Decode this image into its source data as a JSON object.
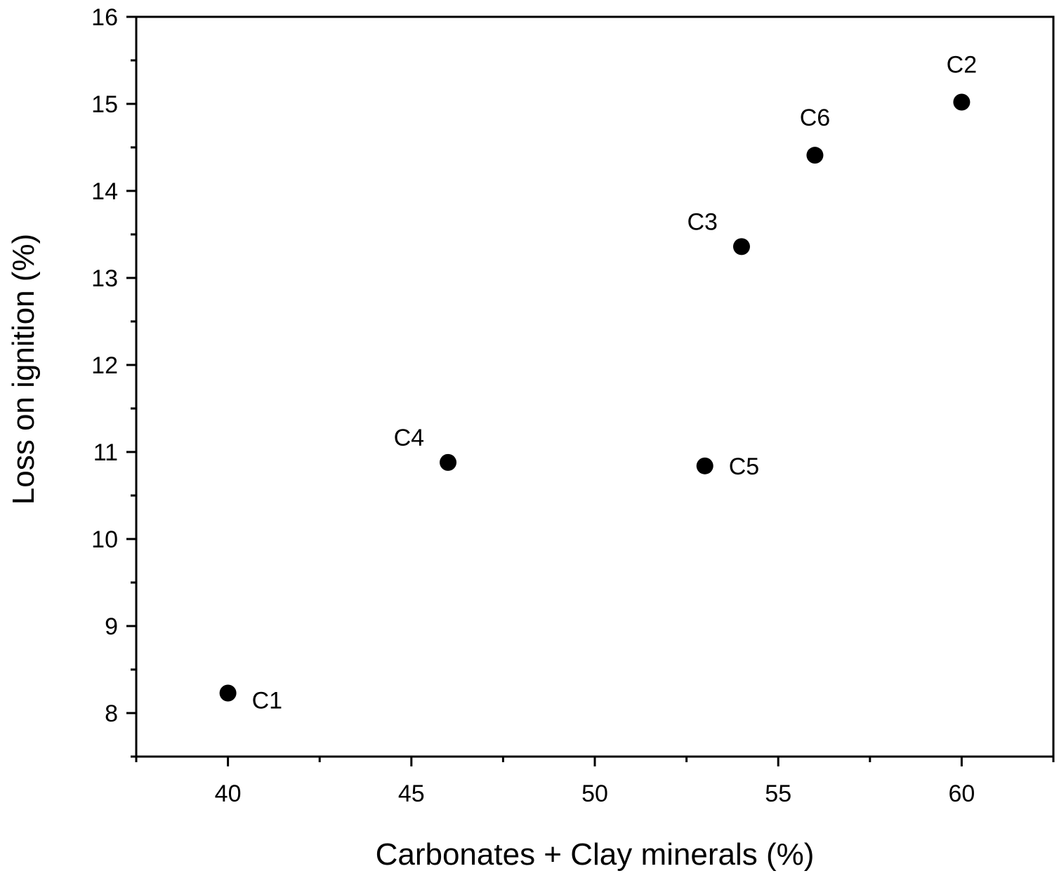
{
  "chart_data": {
    "type": "scatter",
    "title": "",
    "xlabel": "Carbonates + Clay minerals (%)",
    "ylabel": "Loss on ignition (%)",
    "xlim": [
      37.5,
      62.5
    ],
    "ylim": [
      7.5,
      16
    ],
    "x_ticks": [
      "40",
      "45",
      "50",
      "55",
      "60"
    ],
    "y_ticks": [
      "8",
      "9",
      "10",
      "11",
      "12",
      "13",
      "14",
      "15",
      "16"
    ],
    "grid": false,
    "legend": "none",
    "marker_color": "#000000",
    "points": [
      {
        "label": "C1",
        "x": 40,
        "y": 8.23,
        "label_pos": "below-right"
      },
      {
        "label": "C2",
        "x": 60,
        "y": 15.02,
        "label_pos": "above"
      },
      {
        "label": "C3",
        "x": 54,
        "y": 13.36,
        "label_pos": "above-left"
      },
      {
        "label": "C4",
        "x": 46,
        "y": 10.88,
        "label_pos": "above-left"
      },
      {
        "label": "C5",
        "x": 53,
        "y": 10.84,
        "label_pos": "right"
      },
      {
        "label": "C6",
        "x": 56,
        "y": 14.41,
        "label_pos": "above"
      }
    ]
  }
}
